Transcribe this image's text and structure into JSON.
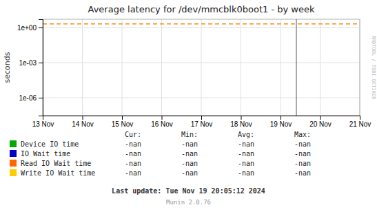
{
  "chart_data": {
    "type": "line",
    "title": "Average latency for /dev/mmcblk0boot1 - by week",
    "ylabel": "seconds",
    "log": "y",
    "grid": true,
    "legend": "bottom",
    "xlim": [
      0,
      8
    ],
    "xticks": [
      {
        "value": 0,
        "label": "13 Nov"
      },
      {
        "value": 1,
        "label": "14 Nov"
      },
      {
        "value": 2,
        "label": "15 Nov"
      },
      {
        "value": 3,
        "label": "16 Nov"
      },
      {
        "value": 4,
        "label": "17 Nov"
      },
      {
        "value": 5,
        "label": "18 Nov"
      },
      {
        "value": 6,
        "label": "19 Nov"
      },
      {
        "value": 7,
        "label": "20 Nov"
      },
      {
        "value": 8,
        "label": "21 Nov"
      }
    ],
    "ylim": [
      3e-08,
      5.0
    ],
    "yticks": [
      {
        "value": 1e-06,
        "label": "1e-06"
      },
      {
        "value": 0.001,
        "label": "1e-03"
      },
      {
        "value": 1,
        "label": "1e+00"
      }
    ],
    "x": [],
    "series": [
      {
        "name": "Device IO time",
        "color": "#00aa00",
        "values": [],
        "legend_values": [
          "-nan",
          "-nan",
          "-nan",
          "-nan"
        ]
      },
      {
        "name": "IO Wait time",
        "color": "#0000cc",
        "values": [],
        "legend_values": [
          "-nan",
          "-nan",
          "-nan",
          "-nan"
        ]
      },
      {
        "name": "Read IO Wait time",
        "color": "#ff6600",
        "values": [],
        "legend_values": [
          "-nan",
          "-nan",
          "-nan",
          "-nan"
        ]
      },
      {
        "name": "Write IO Wait time",
        "color": "#ffcc00",
        "values": [],
        "legend_values": [
          "-nan",
          "-nan",
          "-nan",
          "-nan"
        ]
      }
    ],
    "legend_columns": [
      "Cur:",
      "Min:",
      "Avg:",
      "Max:"
    ],
    "hlines": [
      {
        "value": 2.0,
        "color": "#ff8800",
        "line_style": "dashed"
      }
    ],
    "vlines": [
      {
        "value": 6.4,
        "color": "#555555"
      }
    ],
    "annotations": [
      "Last update: Tue Nov 19 20:05:12 2024",
      "Munin 2.0.76",
      "RRDTOOL / TOBI OETIKER"
    ]
  }
}
